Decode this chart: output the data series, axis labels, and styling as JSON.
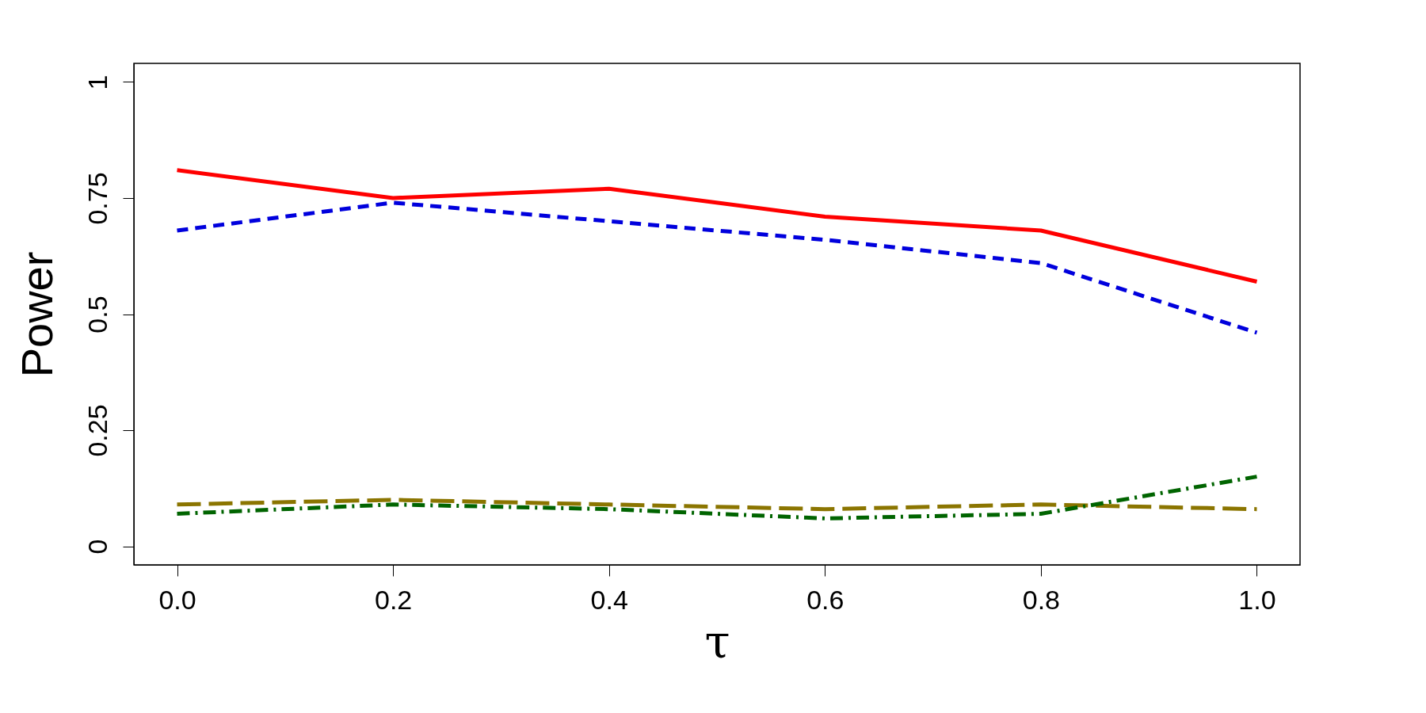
{
  "chart_data": {
    "type": "line",
    "xlabel": "τ",
    "ylabel": "Power",
    "x": [
      0,
      0.2,
      0.4,
      0.6,
      0.8,
      1.0
    ],
    "xlim": [
      -0.04,
      1.04
    ],
    "ylim": [
      -0.04,
      1.04
    ],
    "xticks": [
      {
        "value": 0,
        "label": "0.0"
      },
      {
        "value": 0.2,
        "label": "0.2"
      },
      {
        "value": 0.4,
        "label": "0.4"
      },
      {
        "value": 0.6,
        "label": "0.6"
      },
      {
        "value": 0.8,
        "label": "0.8"
      },
      {
        "value": 1.0,
        "label": "1.0"
      }
    ],
    "yticks": [
      0,
      0.25,
      0.5,
      0.75,
      1
    ],
    "grid": false,
    "marker": "none",
    "series": [
      {
        "color": "#ff0000",
        "line_style": "solid",
        "values": [
          0.81,
          0.75,
          0.77,
          0.71,
          0.68,
          0.57
        ]
      },
      {
        "color": "#0000dd",
        "line_style": "dashed",
        "values": [
          0.68,
          0.74,
          0.7,
          0.66,
          0.61,
          0.46
        ]
      },
      {
        "color": "#8b7500",
        "line_style": "longdash",
        "values": [
          0.09,
          0.1,
          0.09,
          0.08,
          0.09,
          0.08
        ]
      },
      {
        "color": "#006400",
        "line_style": "dashdot",
        "values": [
          0.07,
          0.09,
          0.08,
          0.06,
          0.07,
          0.15
        ]
      }
    ]
  }
}
